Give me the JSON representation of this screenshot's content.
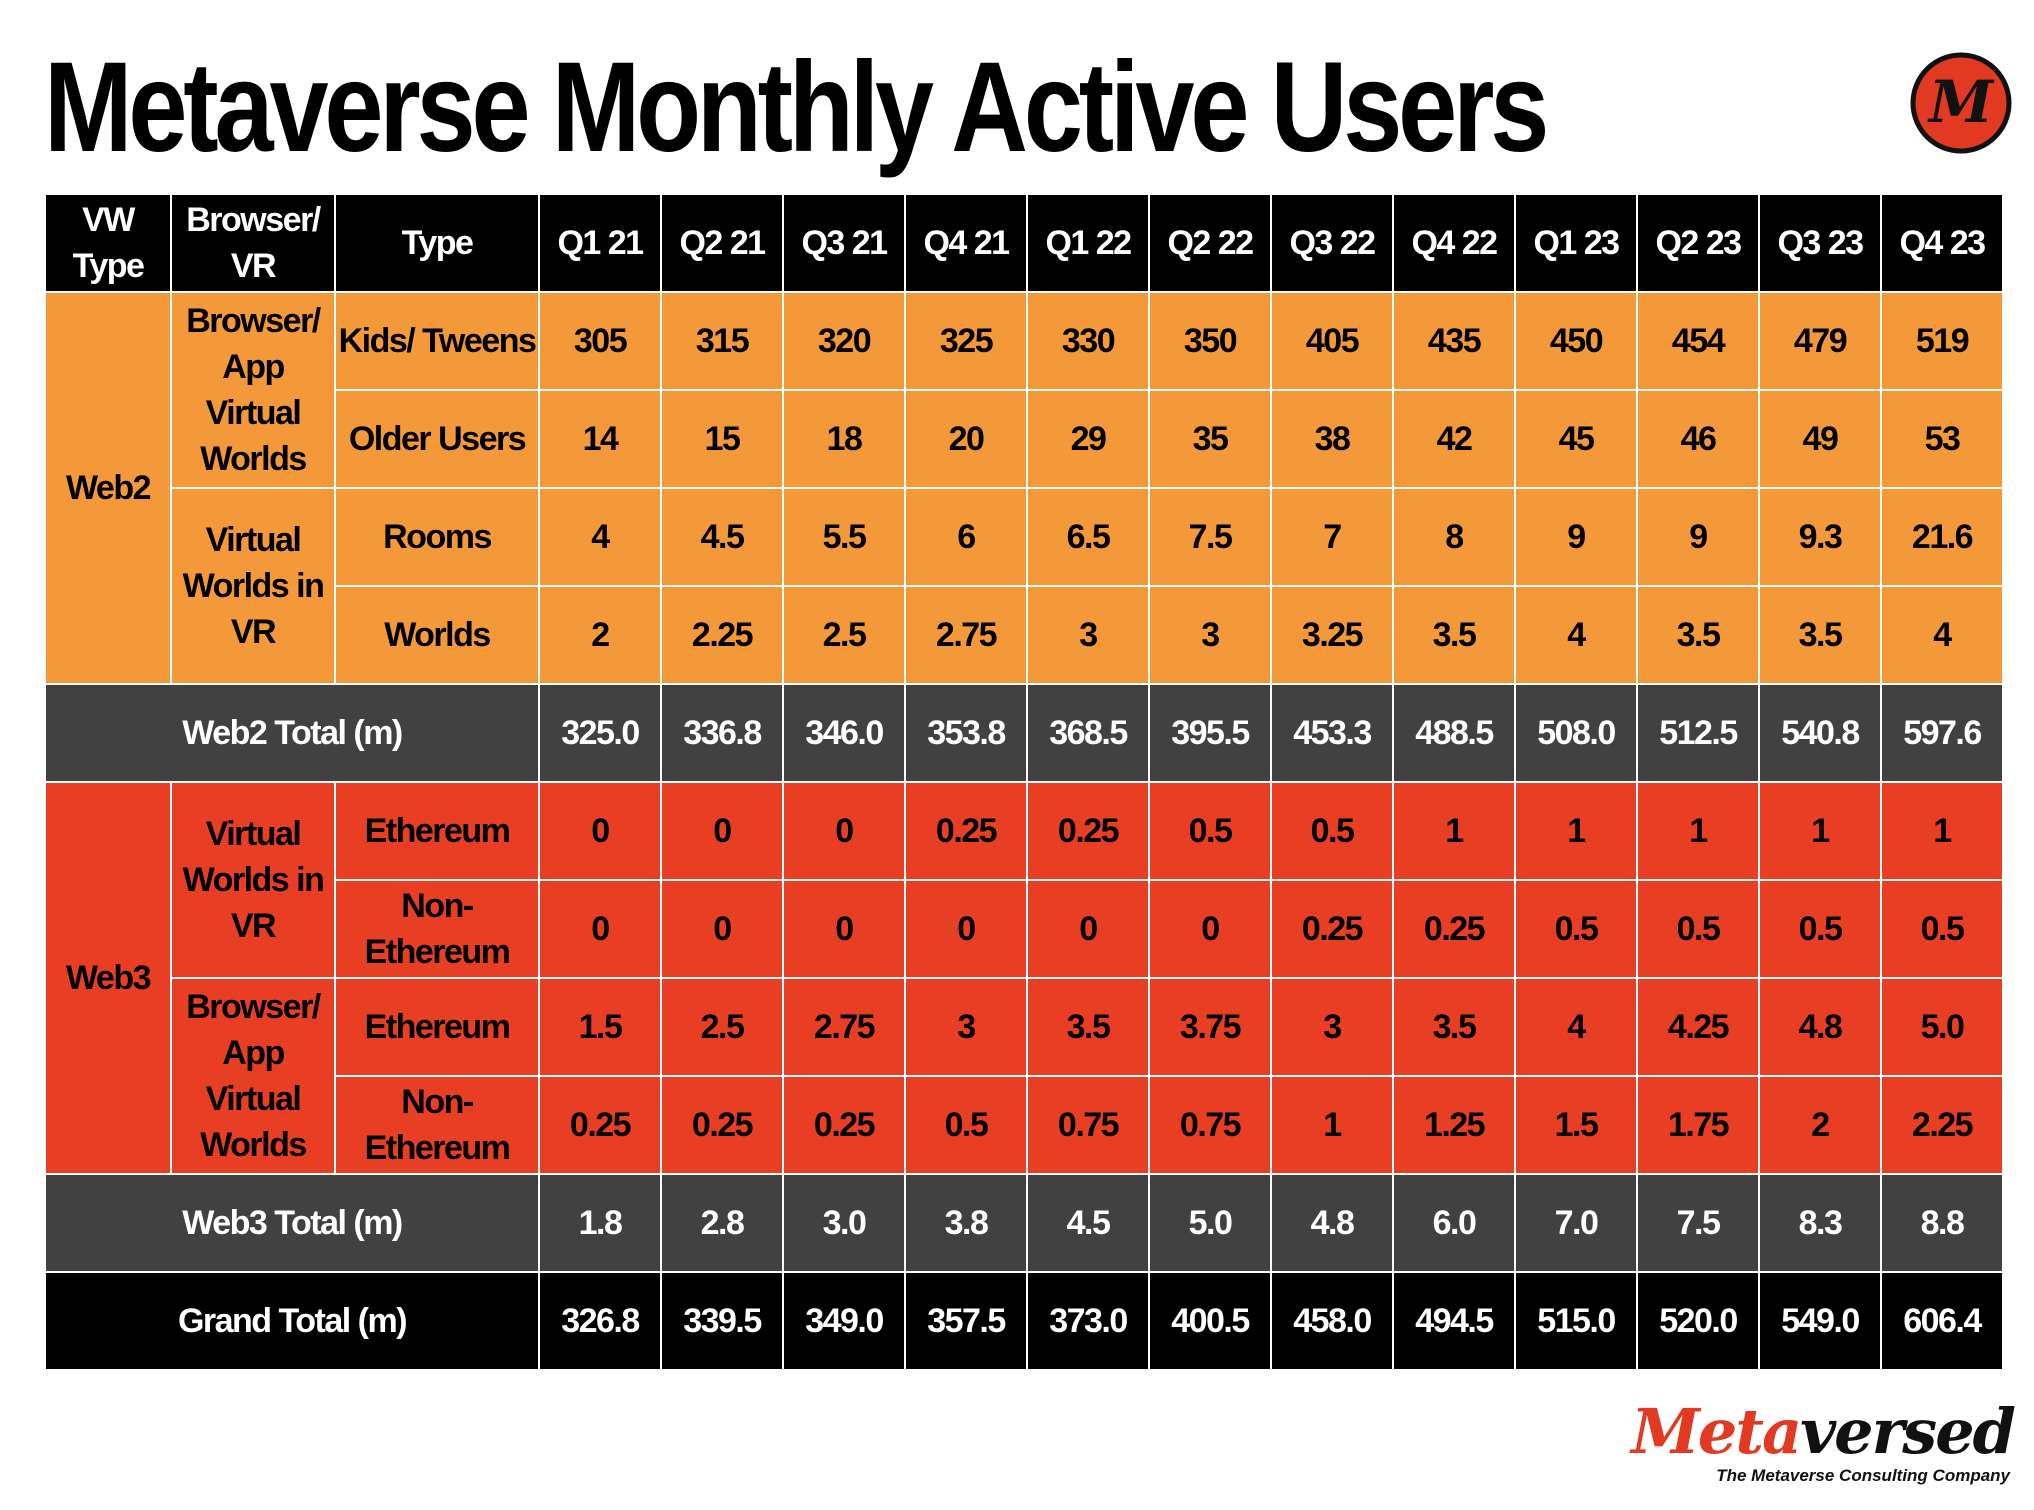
{
  "page": {
    "title": "Metaverse Monthly Active Users",
    "logo_letter": "M"
  },
  "brand": {
    "name_part1": "Meta",
    "name_part2": "versed",
    "tagline": "The Metaverse Consulting Company"
  },
  "colors": {
    "web2": "#f3993a",
    "web3": "#e83f24",
    "total": "#414141",
    "grand": "#000000",
    "logo": "#e23a22"
  },
  "chart_data": {
    "type": "table",
    "title": "Metaverse Monthly Active Users",
    "header": {
      "vw_type": "VW Type",
      "browser_vr": "Browser/ VR",
      "type": "Type",
      "quarters": [
        "Q1 21",
        "Q2 21",
        "Q3 21",
        "Q4 21",
        "Q1 22",
        "Q2 22",
        "Q3 22",
        "Q4 22",
        "Q1 23",
        "Q2 23",
        "Q3 23",
        "Q4 23"
      ]
    },
    "web2": {
      "label": "Web2",
      "groups": [
        {
          "label": "Browser/ App Virtual Worlds",
          "rows": [
            {
              "type": "Kids/ Tweens",
              "values": [
                "305",
                "315",
                "320",
                "325",
                "330",
                "350",
                "405",
                "435",
                "450",
                "454",
                "479",
                "519"
              ]
            },
            {
              "type": "Older Users",
              "values": [
                "14",
                "15",
                "18",
                "20",
                "29",
                "35",
                "38",
                "42",
                "45",
                "46",
                "49",
                "53"
              ]
            }
          ]
        },
        {
          "label": "Virtual Worlds in VR",
          "rows": [
            {
              "type": "Rooms",
              "values": [
                "4",
                "4.5",
                "5.5",
                "6",
                "6.5",
                "7.5",
                "7",
                "8",
                "9",
                "9",
                "9.3",
                "21.6"
              ]
            },
            {
              "type": "Worlds",
              "values": [
                "2",
                "2.25",
                "2.5",
                "2.75",
                "3",
                "3",
                "3.25",
                "3.5",
                "4",
                "3.5",
                "3.5",
                "4"
              ]
            }
          ]
        }
      ],
      "total": {
        "label": "Web2 Total (m)",
        "values": [
          "325.0",
          "336.8",
          "346.0",
          "353.8",
          "368.5",
          "395.5",
          "453.3",
          "488.5",
          "508.0",
          "512.5",
          "540.8",
          "597.6"
        ]
      }
    },
    "web3": {
      "label": "Web3",
      "groups": [
        {
          "label": "Virtual Worlds in VR",
          "rows": [
            {
              "type": "Ethereum",
              "values": [
                "0",
                "0",
                "0",
                "0.25",
                "0.25",
                "0.5",
                "0.5",
                "1",
                "1",
                "1",
                "1",
                "1"
              ]
            },
            {
              "type": "Non-Ethereum",
              "values": [
                "0",
                "0",
                "0",
                "0",
                "0",
                "0",
                "0.25",
                "0.25",
                "0.5",
                "0.5",
                "0.5",
                "0.5"
              ]
            }
          ]
        },
        {
          "label": "Browser/ App Virtual Worlds",
          "rows": [
            {
              "type": "Ethereum",
              "values": [
                "1.5",
                "2.5",
                "2.75",
                "3",
                "3.5",
                "3.75",
                "3",
                "3.5",
                "4",
                "4.25",
                "4.8",
                "5.0"
              ]
            },
            {
              "type": "Non-Ethereum",
              "values": [
                "0.25",
                "0.25",
                "0.25",
                "0.5",
                "0.75",
                "0.75",
                "1",
                "1.25",
                "1.5",
                "1.75",
                "2",
                "2.25"
              ]
            }
          ]
        }
      ],
      "total": {
        "label": "Web3 Total (m)",
        "values": [
          "1.8",
          "2.8",
          "3.0",
          "3.8",
          "4.5",
          "5.0",
          "4.8",
          "6.0",
          "7.0",
          "7.5",
          "8.3",
          "8.8"
        ]
      }
    },
    "grand_total": {
      "label": "Grand Total (m)",
      "values": [
        "326.8",
        "339.5",
        "349.0",
        "357.5",
        "373.0",
        "400.5",
        "458.0",
        "494.5",
        "515.0",
        "520.0",
        "549.0",
        "606.4"
      ]
    }
  }
}
